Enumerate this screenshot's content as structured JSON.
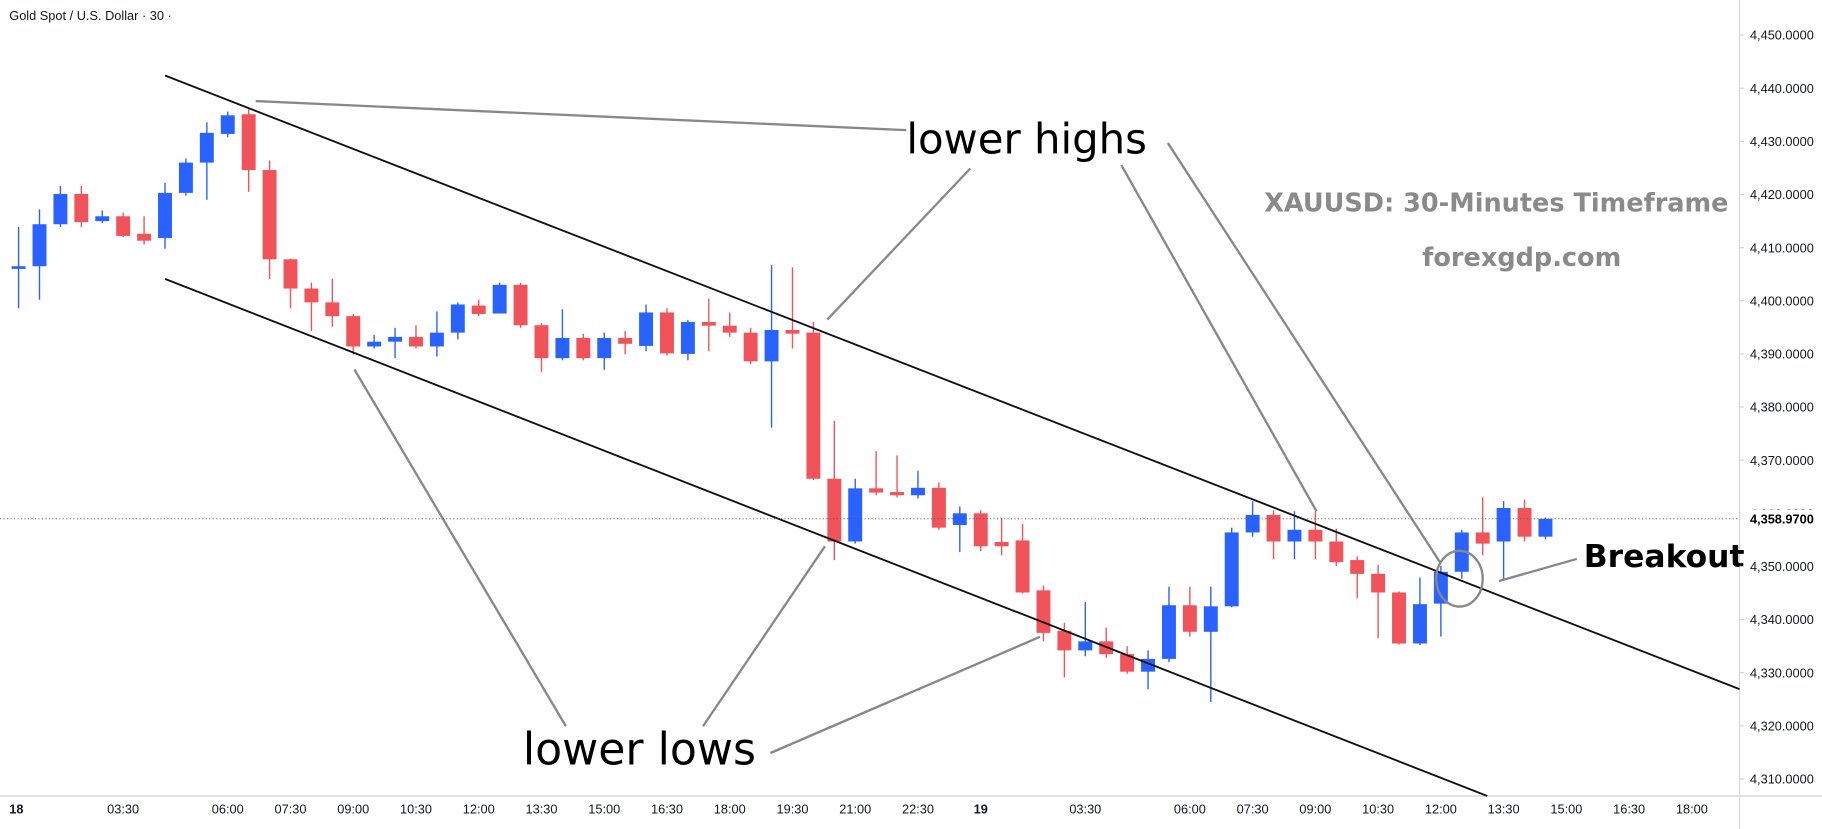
{
  "chart_data": {
    "type": "candlestick",
    "title": "Gold Spot / U.S. Dollar · 30 ·",
    "annotations": {
      "lower_highs": "lower highs",
      "lower_lows": "lower lows",
      "breakout": "Breakout",
      "timeframe": "XAUUSD: 30-Minutes Timeframe",
      "source": "forexgdp.com"
    },
    "up_color": "#2962ff",
    "down_color": "#f0545a",
    "categories": [
      "18",
      null,
      null,
      null,
      null,
      "03:30",
      null,
      null,
      null,
      null,
      "06:00",
      null,
      null,
      "07:30",
      null,
      null,
      "09:00",
      null,
      null,
      "10:30",
      null,
      null,
      "12:00",
      null,
      null,
      "13:30",
      null,
      null,
      "15:00",
      null,
      null,
      "16:30",
      null,
      null,
      "18:00",
      null,
      null,
      "19:30",
      null,
      null,
      "21:00",
      null,
      null,
      "22:30",
      null,
      null,
      "19",
      null,
      null,
      null,
      null,
      "03:30",
      null,
      null,
      null,
      null,
      "06:00",
      null,
      null,
      "07:30",
      null,
      null,
      "09:00",
      null,
      null,
      "10:30",
      null,
      null,
      "12:00",
      null,
      null,
      "13:30",
      null,
      null,
      "15:00",
      null,
      null,
      "16:30",
      null,
      null,
      "18:00"
    ],
    "open": [
      4406,
      4406.5,
      4414.4,
      4420.1,
      4415.0,
      4415.9,
      4412.6,
      4411.8,
      4420.3,
      4426,
      4431.4,
      4435.1,
      4424.6,
      4407.8,
      4402.3,
      4399.7,
      4397.1,
      4391.4,
      4392.3,
      4393.2,
      4391.4,
      4394,
      4399.1,
      4397.6,
      4403,
      4395.4,
      4389.2,
      4393,
      4389.2,
      4393,
      4391.5,
      4397.8,
      4390,
      4396,
      4395.3,
      4394,
      4388.6,
      4394.5,
      4394,
      4366.5,
      4354.7,
      4364.7,
      4364,
      4363.4,
      4364.8,
      4357.8,
      4360,
      4354.6,
      4354.9,
      4345.5,
      4337.9,
      4334.2,
      4335.9,
      4333.5,
      4330.2,
      4332.6,
      4342.7,
      4337.7,
      4342.5,
      4356.4,
      4359.7,
      4354.7,
      4356.9,
      4354.7,
      4351.2,
      4348.6,
      4345.1,
      4335.5,
      4343,
      4349,
      4356.4,
      4354.7,
      4361,
      4355.6,
      null,
      null,
      null,
      null,
      null,
      null,
      null
    ],
    "high": [
      4413.9,
      4417.2,
      4421.6,
      4421.6,
      4417.0,
      4416.6,
      4415.9,
      4422.2,
      4426.8,
      4433.6,
      4435.6,
      4436.0,
      4426.4,
      4407.9,
      4403.4,
      4404.1,
      4397.5,
      4393.6,
      4394.9,
      4395.4,
      4398.0,
      4399.7,
      4400.2,
      4403.4,
      4403.4,
      4395.8,
      4398.4,
      4393.8,
      4394.0,
      4394.3,
      4399.3,
      4398.6,
      4396.4,
      4400.4,
      4397.8,
      4394.9,
      4406.7,
      4406.3,
      4396.0,
      4377.4,
      4366.5,
      4371.7,
      4370.9,
      4368.0,
      4365.8,
      4361.3,
      4360.6,
      4359.1,
      4358.0,
      4346.4,
      4339.4,
      4343.3,
      4338.5,
      4335.0,
      4334.2,
      4346.2,
      4346.2,
      4346.2,
      4357.3,
      4362.3,
      4360.6,
      4360.4,
      4360.4,
      4357.1,
      4351.9,
      4350.3,
      4345.3,
      4347.9,
      4350.1,
      4356.9,
      4363.0,
      4362.3,
      4362.6,
      4359.2,
      null,
      null,
      null,
      null,
      null,
      null,
      null
    ],
    "low": [
      4398.6,
      4400.2,
      4413.9,
      4413.9,
      4414.6,
      4412.0,
      4410.6,
      4409.8,
      4419.8,
      4419.0,
      4430.8,
      4420.5,
      4404.1,
      4398.6,
      4394.3,
      4395.1,
      4389.9,
      4391.0,
      4389.2,
      4391.0,
      4389.5,
      4392.7,
      4397.1,
      4398.0,
      4394.9,
      4386.6,
      4388.8,
      4388.8,
      4387.0,
      4389.9,
      4390.5,
      4389.7,
      4388.8,
      4390.5,
      4393.2,
      4388.1,
      4376.1,
      4391.0,
      4366.3,
      4351.2,
      4354.3,
      4363.4,
      4363.0,
      4362.8,
      4356.9,
      4352.7,
      4352.9,
      4352.1,
      4344.9,
      4335.9,
      4329.1,
      4333.1,
      4332.8,
      4329.8,
      4326.9,
      4332.0,
      4336.8,
      4324.5,
      4342.3,
      4355.6,
      4351.4,
      4351.4,
      4351.4,
      4350.1,
      4344.0,
      4336.5,
      4335.3,
      4335.2,
      4336.8,
      4347.7,
      4352.1,
      4347.7,
      4354.7,
      4355.1,
      null,
      null,
      null,
      null,
      null,
      null,
      null
    ],
    "close": [
      4406.5,
      4414.4,
      4420.1,
      4414.8,
      4415.9,
      4412.2,
      4411.3,
      4420.3,
      4426,
      4431.6,
      4434.9,
      4424.6,
      4407.8,
      4402.3,
      4399.7,
      4397.1,
      4391.4,
      4392.3,
      4393.2,
      4391.4,
      4394,
      4399.3,
      4397.5,
      4403,
      4395.4,
      4389.2,
      4393.0,
      4389.2,
      4393,
      4391.9,
      4397.8,
      4390.1,
      4396,
      4395.3,
      4394,
      4388.6,
      4394.5,
      4393.8,
      4366.5,
      4354.7,
      4364.7,
      4363.9,
      4363.4,
      4364.8,
      4357.3,
      4360.0,
      4353.8,
      4353.8,
      4345.1,
      4337.5,
      4334.2,
      4335.9,
      4333.5,
      4330.2,
      4332.6,
      4342.7,
      4337.7,
      4342.5,
      4356.4,
      4359.7,
      4354.7,
      4356.9,
      4354.7,
      4350.8,
      4348.6,
      4345.1,
      4335.5,
      4342.9,
      4349,
      4356.4,
      4354.3,
      4361,
      4355.6,
      4358.97,
      null,
      null,
      null,
      null,
      null,
      null,
      null
    ],
    "last_price": {
      "value": 4358.97,
      "label": "4,358.9700"
    },
    "ylim": [
      4306.8,
      4456.6
    ],
    "yticks": [
      {
        "value": 4310,
        "label": "4,310.0000"
      },
      {
        "value": 4320,
        "label": "4,320.0000"
      },
      {
        "value": 4330,
        "label": "4,330.0000"
      },
      {
        "value": 4340,
        "label": "4,340.0000"
      },
      {
        "value": 4350,
        "label": "4,350.0000"
      },
      {
        "value": 4360,
        "label": "4,360.0000"
      },
      {
        "value": 4370,
        "label": "4,370.0000"
      },
      {
        "value": 4380,
        "label": "4,380.0000"
      },
      {
        "value": 4390,
        "label": "4,390.0000"
      },
      {
        "value": 4400,
        "label": "4,400.0000"
      },
      {
        "value": 4410,
        "label": "4,410.0000"
      },
      {
        "value": 4420,
        "label": "4,420.0000"
      },
      {
        "value": 4430,
        "label": "4,430.0000"
      },
      {
        "value": 4440,
        "label": "4,440.0000"
      },
      {
        "value": 4450,
        "label": "4,450.0000"
      }
    ]
  }
}
